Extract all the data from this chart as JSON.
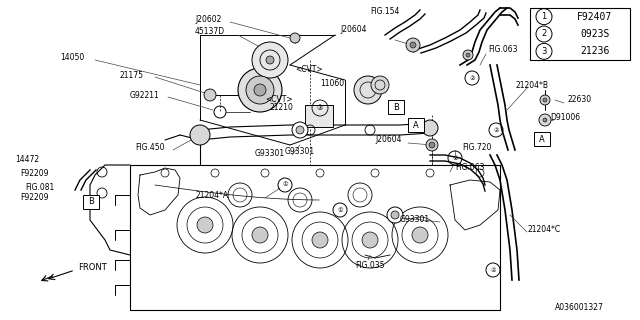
{
  "bg_color": "#ffffff",
  "line_color": "#000000",
  "legend_items": [
    {
      "num": "1",
      "code": "F92407"
    },
    {
      "num": "2",
      "code": "0923S"
    },
    {
      "num": "3",
      "code": "21236"
    }
  ],
  "figsize": [
    6.4,
    3.2
  ],
  "dpi": 100
}
